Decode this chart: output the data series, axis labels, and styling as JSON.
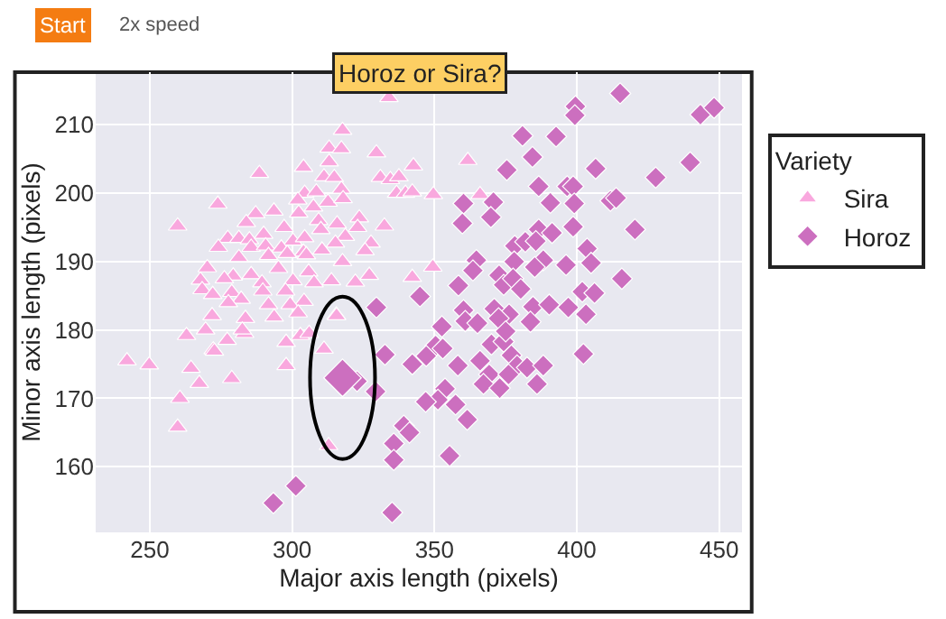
{
  "chart_data": {
    "type": "scatter",
    "title": "Horoz or Sira?",
    "xlabel": "Major axis length (pixels)",
    "ylabel": "Minor axis length (pixels)",
    "legend_title": "Variety",
    "annotations": [
      "Start",
      "2x speed"
    ],
    "xlim": [
      231,
      458
    ],
    "ylim": [
      150.4,
      217.7
    ],
    "xticks": [
      250,
      300,
      350,
      400,
      450
    ],
    "yticks": [
      160,
      170,
      180,
      190,
      200,
      210
    ],
    "grid": true,
    "legend": "right",
    "series": [
      {
        "name": "Sira",
        "color": "#f9a8de",
        "marker": "triangle",
        "x": [
          334,
          317.7,
          313,
          317.3,
          329.6,
          313,
          304,
          288.5,
          311.2,
          314.8,
          331,
          334.5,
          337.5,
          317.3,
          304.4,
          308.5,
          302,
          307.5,
          312.6,
          317.9,
          336.7,
          339.8,
          273.9,
          293.6,
          287.2,
          323.6,
          309.3,
          302.3,
          259.8,
          283.9,
          297.2,
          332.4,
          315.8,
          323,
          310.1,
          277.4,
          281.3,
          285,
          290,
          300.3,
          304.4,
          318.7,
          327.7,
          274.1,
          285.6,
          290.7,
          296.2,
          304,
          310.5,
          315.2,
          325.6,
          281.3,
          291.7,
          298.3,
          305,
          317.7,
          270.2,
          279.3,
          276.2,
          285.6,
          295.2,
          305.8,
          267.8,
          289.4,
          300.3,
          307.7,
          313.8,
          322.2,
          327.1,
          268.4,
          272.1,
          278.8,
          282.1,
          289.7,
          297.7,
          304.2,
          277.6,
          291.7,
          299.3,
          271.9,
          283.6,
          293.7,
          302.1,
          315.5,
          242,
          249.8,
          262.9,
          269.6,
          272.3,
          272.7,
          264.5,
          267.4,
          278.8,
          260.6,
          259.8,
          283.3,
          282.5,
          277.2,
          297.9,
          297.9,
          302.9,
          306,
          311.2,
          315.6,
          312.8,
          342.6,
          342.2,
          349.6,
          361.7,
          366,
          342.2,
          349.4
        ],
        "values": [
          214.0,
          209.2,
          206.6,
          206.5,
          205.9,
          204.6,
          203.8,
          202.9,
          202.4,
          202.3,
          202.3,
          202.0,
          202.4,
          200.6,
          200.0,
          200.2,
          199.0,
          198.0,
          198.7,
          199.2,
          200.0,
          200.0,
          198.4,
          197.4,
          197.0,
          196.4,
          196.0,
          197.1,
          195.2,
          195.7,
          195.0,
          195.2,
          195.5,
          195.0,
          194.7,
          193.4,
          193.4,
          193.2,
          194.0,
          193.0,
          193.5,
          193.7,
          192.7,
          192.1,
          192.1,
          192.3,
          192.0,
          191.4,
          191.7,
          192.7,
          191.6,
          190.6,
          190.9,
          191.2,
          191.0,
          190.0,
          189.1,
          187.9,
          187.5,
          188.1,
          189.0,
          188.5,
          187.3,
          186.9,
          187.2,
          186.9,
          187.2,
          187.0,
          188.0,
          185.9,
          185.2,
          185.5,
          184.5,
          185.7,
          185.7,
          184.2,
          184.0,
          183.7,
          183.7,
          182.1,
          181.7,
          181.9,
          182.5,
          182.2,
          175.5,
          174.9,
          179.2,
          180.0,
          177.1,
          176.9,
          174.4,
          172.2,
          172.9,
          170.0,
          165.8,
          179.5,
          180.0,
          178.5,
          178.2,
          174.8,
          179.2,
          179.5,
          177.2,
          182.1,
          163.1,
          204.0,
          200.2,
          199.8,
          204.8,
          199.8,
          187.7,
          189.2
        ]
      },
      {
        "name": "Horoz",
        "color": "#cc6fbf",
        "marker": "diamond",
        "x": [
          415.2,
          399.5,
          399.3,
          443.4,
          448.2,
          380.9,
          392.7,
          384.4,
          375.4,
          406.6,
          439.8,
          427.7,
          386.6,
          396.6,
          398.7,
          360.2,
          370.7,
          390.7,
          399.1,
          411.8,
          413.8,
          359.8,
          369.8,
          386.6,
          391.3,
          398.7,
          420.4,
          378.2,
          381.9,
          385.6,
          364.7,
          378,
          388.2,
          385.2,
          396.2,
          403.6,
          405,
          363.5,
          372.7,
          374.3,
          377.6,
          380.3,
          358.4,
          415.8,
          344.9,
          401.9,
          406.2,
          384.6,
          390.3,
          397,
          403.2,
          360.2,
          371,
          376.2,
          352.6,
          360.8,
          365.1,
          372.5,
          383.7,
          350.4,
          352.9,
          347.1,
          342.2,
          358.2,
          366,
          370,
          374.3,
          377,
          379,
          382.5,
          388.2,
          402.3,
          369.2,
          367.2,
          376,
          372.9,
          386,
          353.7,
          351.2,
          346.9,
          357.4,
          361.5,
          339.2,
          341.2,
          335.7,
          335.7,
          355.3,
          335.1,
          375,
          329.6,
          332.6,
          322.8,
          329.3,
          301.3,
          293.4
        ],
        "values": [
          214.6,
          212.7,
          211.4,
          211.5,
          212.5,
          208.4,
          208.3,
          205.3,
          203.4,
          203.6,
          204.5,
          202.3,
          201.0,
          201.0,
          201.0,
          198.5,
          198.7,
          198.6,
          198.5,
          198.9,
          199.3,
          195.6,
          196.5,
          194.7,
          194.2,
          195.1,
          194.7,
          192.3,
          192.9,
          193.0,
          190.2,
          190.0,
          190.2,
          189.2,
          189.5,
          191.9,
          189.8,
          188.7,
          188.0,
          186.6,
          187.5,
          186.0,
          186.5,
          187.5,
          184.9,
          185.6,
          185.4,
          183.4,
          183.7,
          183.3,
          182.3,
          182.9,
          183.1,
          182.3,
          180.5,
          181.3,
          181.0,
          181.7,
          181.2,
          177.7,
          177.3,
          176.2,
          175.0,
          174.8,
          175.5,
          177.9,
          178.3,
          176.3,
          174.8,
          174.5,
          174.8,
          176.5,
          173.5,
          172.1,
          173.5,
          171.5,
          172.1,
          171.4,
          169.8,
          169.5,
          169.1,
          166.9,
          166.0,
          165.0,
          163.4,
          161.0,
          161.6,
          153.3,
          179.8,
          183.3,
          176.4,
          172.5,
          171.0,
          157.2,
          154.7
        ]
      },
      {
        "color": "#cc6fbf",
        "marker": "diamond",
        "x": [
          317.7
        ],
        "values": [
          173.0
        ]
      }
    ]
  }
}
